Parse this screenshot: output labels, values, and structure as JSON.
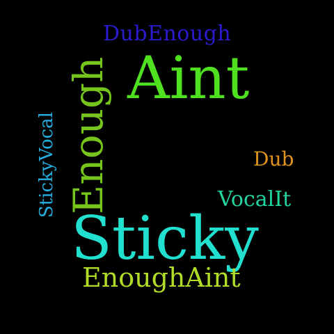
{
  "canvas": {
    "background": "#000000"
  },
  "words": {
    "dubenough": {
      "text": "DubEnough",
      "color": "#2b1bd0"
    },
    "aint": {
      "text": "Aint",
      "color": "#4fe01f"
    },
    "enough": {
      "text": "Enough",
      "color": "#76c51c"
    },
    "stickyvocal": {
      "text": "StickyVocal",
      "color": "#27aee0"
    },
    "dub": {
      "text": "Dub",
      "color": "#e0941e"
    },
    "vocalit": {
      "text": "VocalIt",
      "color": "#21d4a0"
    },
    "sticky": {
      "text": "Sticky",
      "color": "#22e0cf"
    },
    "enoughaint": {
      "text": "EnoughAint",
      "color": "#b1dc27"
    }
  }
}
